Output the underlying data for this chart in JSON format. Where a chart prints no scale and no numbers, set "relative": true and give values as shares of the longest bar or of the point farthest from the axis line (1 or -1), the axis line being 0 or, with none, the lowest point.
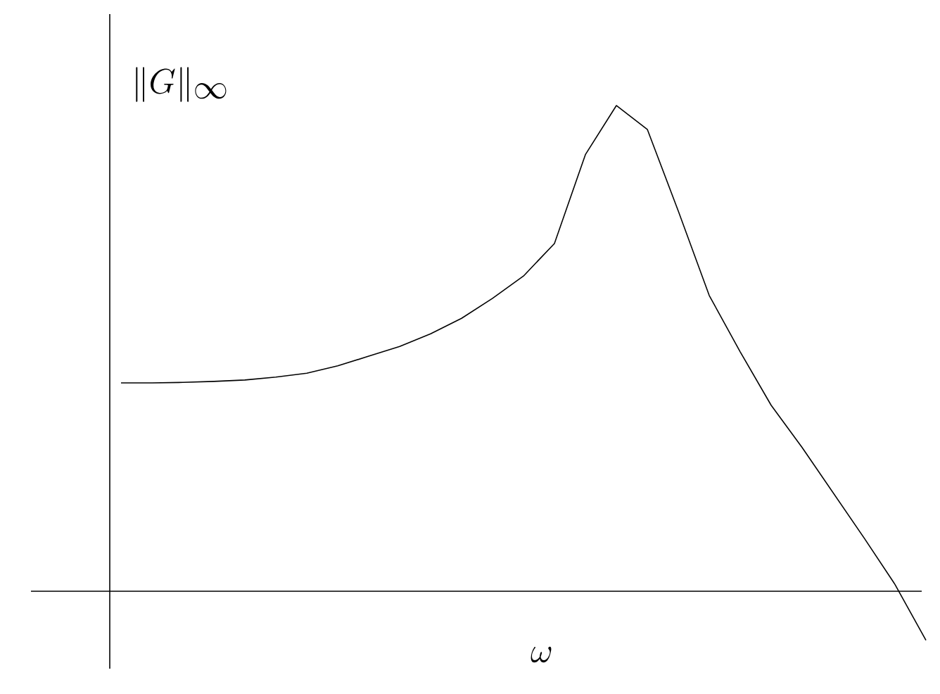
{
  "chart_data": {
    "type": "line",
    "relative": true,
    "xlabel": "\\omega",
    "ylabel": "\\|G\\|\\sb{\\infty}",
    "categories": [
      null,
      null,
      null,
      null,
      null,
      null,
      null,
      null,
      null,
      null,
      null,
      null,
      null,
      null,
      null,
      null,
      null,
      null,
      null,
      null,
      null,
      null,
      null,
      null,
      null,
      null,
      null
    ],
    "series": [
      {
        "color": "#000000",
        "values": [
          0.429,
          0.429,
          0.43,
          0.432,
          0.435,
          0.441,
          0.449,
          0.464,
          0.484,
          0.504,
          0.53,
          0.562,
          0.603,
          0.649,
          0.716,
          0.899,
          1,
          0.951,
          0.783,
          0.609,
          0.493,
          0.383,
          0.296,
          0.203,
          0.11,
          0.014,
          -0.101
        ]
      }
    ]
  }
}
